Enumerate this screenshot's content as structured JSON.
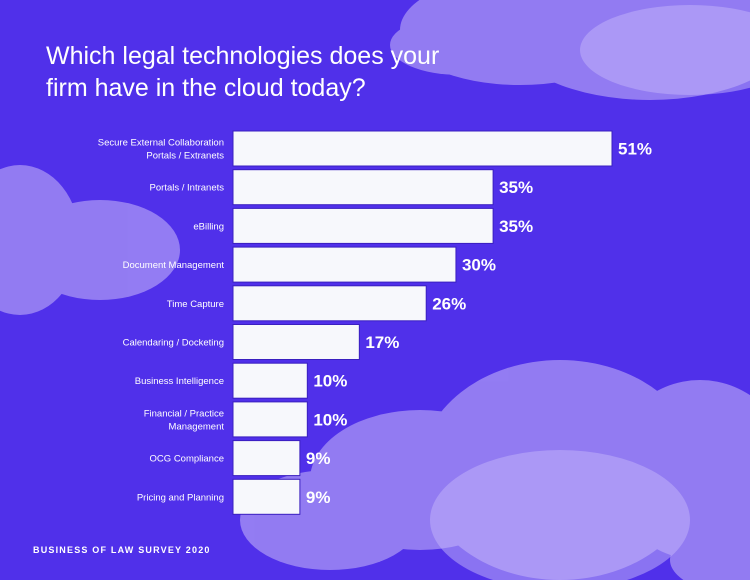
{
  "title": "Which legal technologies does your firm have in the cloud today?",
  "footer": "BUSINESS OF LAW SURVEY 2020",
  "colors": {
    "background": "#5030ea",
    "bar": "#f7f8fc",
    "cloud": "#a995f5",
    "text": "#ffffff"
  },
  "chart_data": {
    "type": "bar",
    "orientation": "horizontal",
    "title": "Which legal technologies does your firm have in the cloud today?",
    "categories": [
      [
        "Secure External Collaboration",
        "Portals / Extranets"
      ],
      [
        "Portals / Intranets"
      ],
      [
        "eBilling"
      ],
      [
        "Document Management"
      ],
      [
        "Time Capture"
      ],
      [
        "Calendaring / Docketing"
      ],
      [
        "Business Intelligence"
      ],
      [
        "Financial / Practice",
        "Management"
      ],
      [
        "OCG Compliance"
      ],
      [
        "Pricing and Planning"
      ]
    ],
    "values": [
      51,
      35,
      35,
      30,
      26,
      17,
      10,
      10,
      9,
      9
    ],
    "value_labels": [
      "51%",
      "35%",
      "35%",
      "30%",
      "26%",
      "17%",
      "10%",
      "10%",
      "9%",
      "9%"
    ],
    "unit": "%",
    "grid": false
  }
}
